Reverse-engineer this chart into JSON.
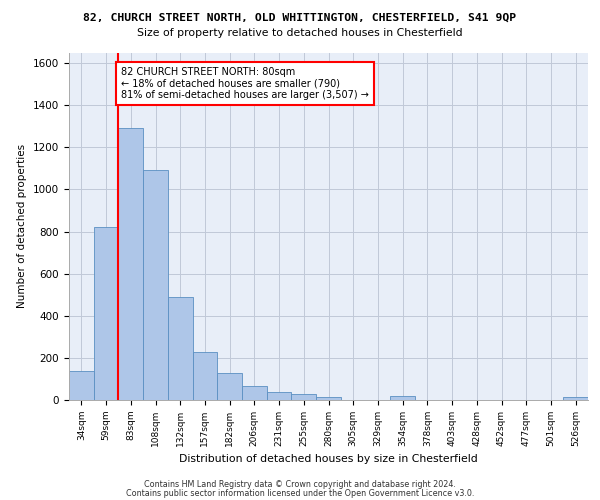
{
  "title_line1": "82, CHURCH STREET NORTH, OLD WHITTINGTON, CHESTERFIELD, S41 9QP",
  "title_line2": "Size of property relative to detached houses in Chesterfield",
  "xlabel": "Distribution of detached houses by size in Chesterfield",
  "ylabel": "Number of detached properties",
  "bar_categories": [
    "34sqm",
    "59sqm",
    "83sqm",
    "108sqm",
    "132sqm",
    "157sqm",
    "182sqm",
    "206sqm",
    "231sqm",
    "255sqm",
    "280sqm",
    "305sqm",
    "329sqm",
    "354sqm",
    "378sqm",
    "403sqm",
    "428sqm",
    "452sqm",
    "477sqm",
    "501sqm",
    "526sqm"
  ],
  "bar_values": [
    140,
    820,
    1290,
    1090,
    490,
    230,
    130,
    65,
    40,
    28,
    15,
    0,
    0,
    17,
    0,
    0,
    0,
    0,
    0,
    0,
    14
  ],
  "bar_color": "#aec6e8",
  "bar_edge_color": "#5a8fc2",
  "vline_color": "red",
  "vline_x": 1.5,
  "annotation_text": "82 CHURCH STREET NORTH: 80sqm\n← 18% of detached houses are smaller (790)\n81% of semi-detached houses are larger (3,507) →",
  "ylim": [
    0,
    1650
  ],
  "yticks": [
    0,
    200,
    400,
    600,
    800,
    1000,
    1200,
    1400,
    1600
  ],
  "grid_color": "#c0c8d8",
  "background_color": "#e8eef8",
  "footer_line1": "Contains HM Land Registry data © Crown copyright and database right 2024.",
  "footer_line2": "Contains public sector information licensed under the Open Government Licence v3.0."
}
